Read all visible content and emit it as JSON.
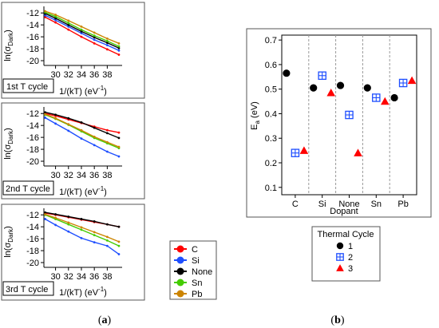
{
  "chart_data": [
    {
      "type": "line",
      "label": "1st T cycle",
      "xlabel": "1/(kT) (eV",
      "xlabel_sup": "-1",
      "ylabel_main": "ln(σ",
      "ylabel_sub": "Dark",
      "xlim": [
        28.2,
        40.3
      ],
      "ylim": [
        -20.8,
        -10.9
      ],
      "xticks": [
        30,
        32,
        34,
        36,
        38
      ],
      "yticks": [
        -12,
        -14,
        -16,
        -18,
        -20
      ],
      "x": [
        28.4,
        30.0,
        32.0,
        34.0,
        36.0,
        38.0,
        39.8
      ],
      "series": [
        {
          "name": "C",
          "color": "#ff0000",
          "values": [
            -12.7,
            -13.6,
            -14.8,
            -16.0,
            -17.1,
            -18.1,
            -19.0
          ]
        },
        {
          "name": "Si",
          "color": "#1f4fff",
          "values": [
            -12.4,
            -13.2,
            -14.3,
            -15.4,
            -16.5,
            -17.4,
            -18.3
          ]
        },
        {
          "name": "None",
          "color": "#000000",
          "values": [
            -12.1,
            -12.9,
            -14.0,
            -15.1,
            -16.1,
            -17.0,
            -17.9
          ]
        },
        {
          "name": "Sn",
          "color": "#44cc00",
          "values": [
            -11.9,
            -12.6,
            -13.7,
            -14.8,
            -15.8,
            -16.7,
            -17.6
          ]
        },
        {
          "name": "Pb",
          "color": "#cc8400",
          "values": [
            -11.7,
            -12.3,
            -13.3,
            -14.3,
            -15.3,
            -16.3,
            -17.1
          ]
        }
      ]
    },
    {
      "type": "line",
      "label": "2nd T cycle",
      "xlabel": "1/(kT) (eV",
      "xlabel_sup": "-1",
      "ylabel_main": "ln(σ",
      "ylabel_sub": "Dark",
      "xlim": [
        28.2,
        40.3
      ],
      "ylim": [
        -20.8,
        -10.9
      ],
      "xticks": [
        30,
        32,
        34,
        36,
        38
      ],
      "yticks": [
        -12,
        -14,
        -16,
        -18,
        -20
      ],
      "x": [
        28.4,
        30.0,
        32.0,
        34.0,
        36.0,
        38.0,
        39.8
      ],
      "series": [
        {
          "name": "C",
          "color": "#ff0000",
          "values": [
            -12.0,
            -12.4,
            -13.0,
            -13.6,
            -14.2,
            -14.8,
            -15.2
          ]
        },
        {
          "name": "Si",
          "color": "#1f4fff",
          "values": [
            -12.7,
            -13.7,
            -14.9,
            -16.2,
            -17.3,
            -18.4,
            -19.2
          ]
        },
        {
          "name": "None",
          "color": "#000000",
          "values": [
            -11.8,
            -12.2,
            -12.8,
            -13.5,
            -14.4,
            -15.3,
            -16.1
          ]
        },
        {
          "name": "Sn",
          "color": "#44cc00",
          "values": [
            -12.2,
            -12.9,
            -13.9,
            -15.0,
            -16.1,
            -17.0,
            -17.8
          ]
        },
        {
          "name": "Pb",
          "color": "#cc8400",
          "values": [
            -12.1,
            -12.8,
            -13.8,
            -14.8,
            -15.9,
            -16.8,
            -17.6
          ]
        }
      ]
    },
    {
      "type": "line",
      "label": "3rd T cycle",
      "xlabel": "1/(kT) (eV",
      "xlabel_sup": "-1",
      "ylabel_main": "ln(σ",
      "ylabel_sub": "Dark",
      "xlim": [
        28.2,
        40.3
      ],
      "ylim": [
        -20.8,
        -10.9
      ],
      "xticks": [
        30,
        32,
        34,
        36,
        38
      ],
      "yticks": [
        -12,
        -14,
        -16,
        -18,
        -20
      ],
      "x": [
        28.4,
        30.0,
        32.0,
        34.0,
        36.0,
        38.0,
        39.8
      ],
      "series": [
        {
          "name": "C",
          "color": "#ff0000",
          "values": [
            -11.7,
            -12.0,
            -12.4,
            -12.8,
            -13.2,
            -13.6,
            -14.0
          ]
        },
        {
          "name": "Si",
          "color": "#1f4fff",
          "values": [
            -12.7,
            -13.7,
            -14.8,
            -15.9,
            -16.6,
            -17.2,
            -18.6
          ]
        },
        {
          "name": "None",
          "color": "#000000",
          "values": [
            -11.6,
            -11.9,
            -12.3,
            -12.7,
            -13.1,
            -13.6,
            -14.0
          ]
        },
        {
          "name": "Sn",
          "color": "#44cc00",
          "values": [
            -12.0,
            -12.7,
            -13.6,
            -14.5,
            -15.4,
            -16.3,
            -17.2
          ]
        },
        {
          "name": "Pb",
          "color": "#cc8400",
          "values": [
            -11.9,
            -12.5,
            -13.3,
            -14.1,
            -14.9,
            -15.7,
            -16.5
          ]
        }
      ]
    },
    {
      "type": "scatter",
      "xlabel": "Dopant",
      "ylabel_main": "E",
      "ylabel_sub": "a",
      "ylabel_unit": " (eV)",
      "ylim": [
        0.07,
        0.72
      ],
      "yticks": [
        0.1,
        0.2,
        0.3,
        0.4,
        0.5,
        0.6,
        0.7
      ],
      "yticklabels": [
        "0.1",
        "0.2",
        "0.3",
        "0.4",
        "0.5",
        "0.6",
        "0.7"
      ],
      "categories": [
        "C",
        "Si",
        "None",
        "Sn",
        "Pb"
      ],
      "legend_title": "Thermal Cycle",
      "series": [
        {
          "name": "1",
          "marker": "circle",
          "color": "#000000",
          "values": [
            0.565,
            0.505,
            0.515,
            0.505,
            0.465
          ]
        },
        {
          "name": "2",
          "marker": "square-cross",
          "color": "#1f4fff",
          "values": [
            0.24,
            0.555,
            0.395,
            0.465,
            0.525
          ]
        },
        {
          "name": "3",
          "marker": "triangle",
          "color": "#ff0000",
          "values": [
            0.25,
            0.485,
            0.24,
            0.45,
            0.535
          ]
        }
      ]
    }
  ],
  "legend_a": [
    {
      "name": "C",
      "color": "#ff0000"
    },
    {
      "name": "Si",
      "color": "#1f4fff"
    },
    {
      "name": "None",
      "color": "#000000"
    },
    {
      "name": "Sn",
      "color": "#44cc00"
    },
    {
      "name": "Pb",
      "color": "#cc8400"
    }
  ],
  "panel_labels": {
    "a_open": "(",
    "a_letter": "a",
    "a_close": ")",
    "b_open": "(",
    "b_letter": "b",
    "b_close": ")"
  }
}
